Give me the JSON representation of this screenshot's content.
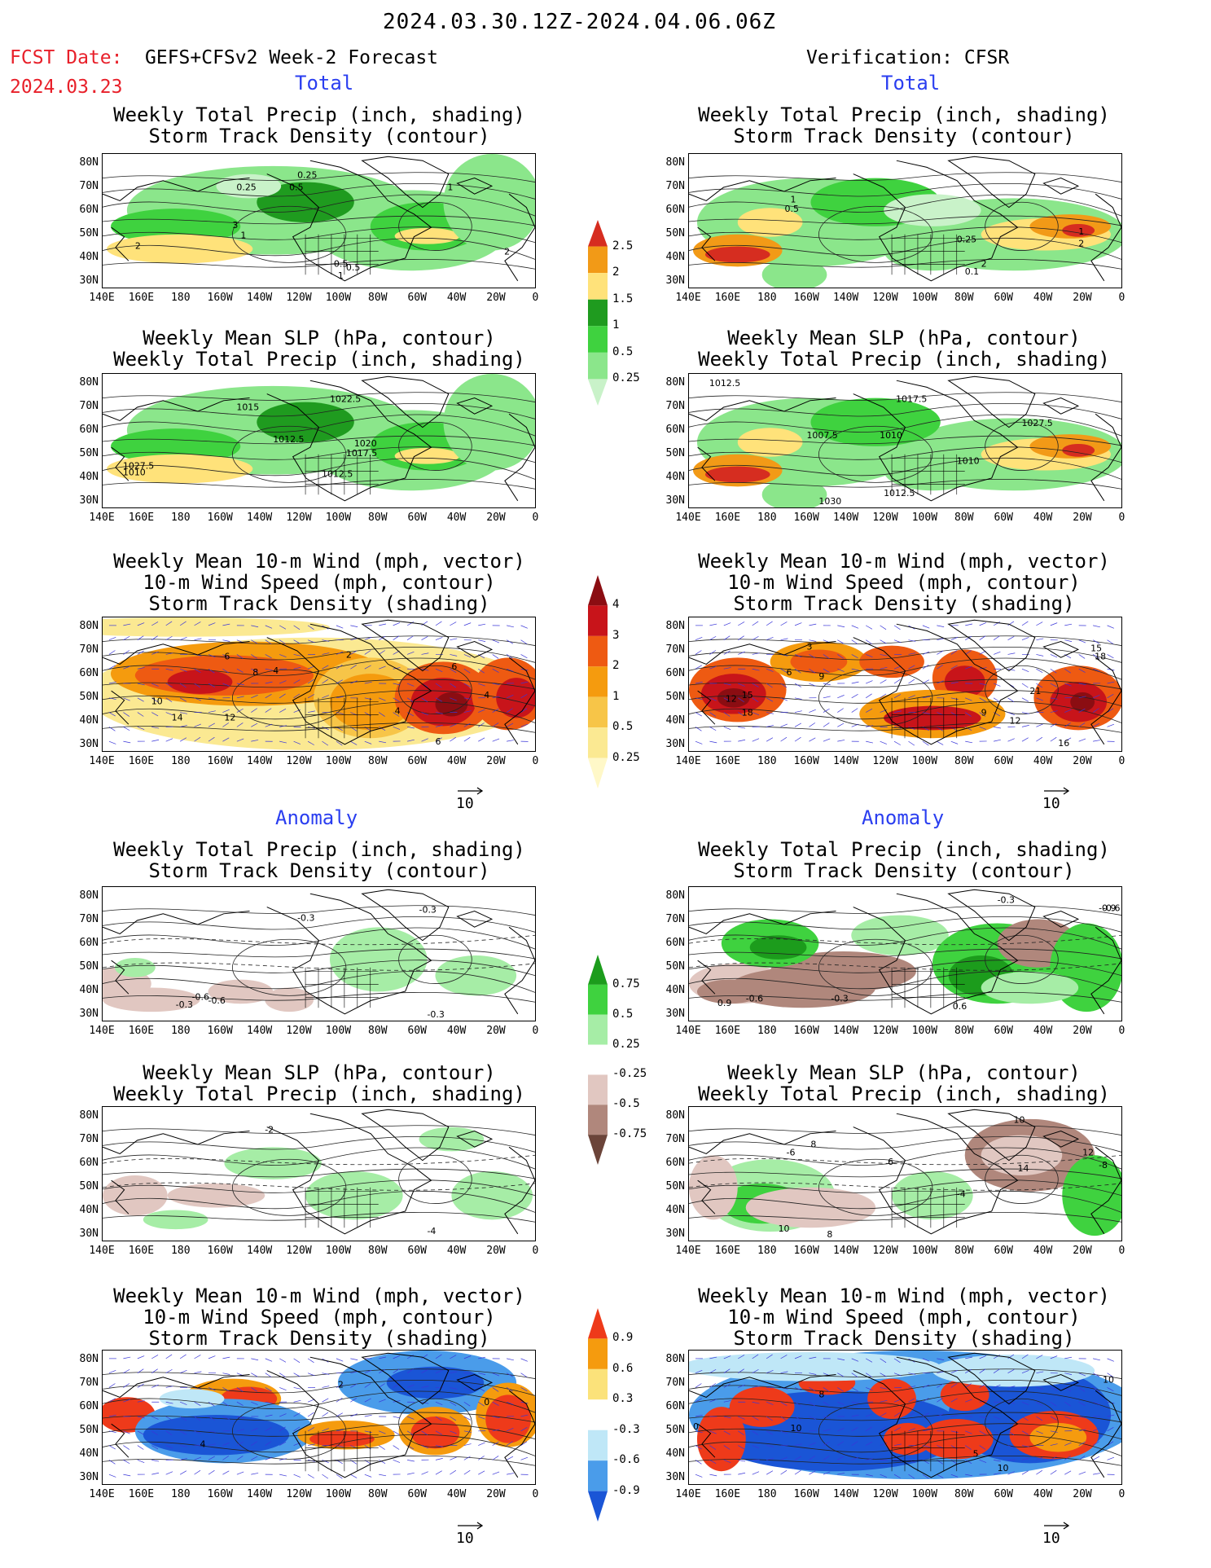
{
  "header": {
    "date_range": "2024.03.30.12Z-2024.04.06.06Z",
    "fcst_label": "FCST Date:",
    "fcst_model": "GEFS+CFSv2 Week-2 Forecast",
    "fcst_date": "2024.03.23",
    "verification": "Verification: CFSR"
  },
  "sections": {
    "total": "Total",
    "anomaly": "Anomaly"
  },
  "panel_titles": {
    "precip_storm": "Weekly Total Precip (inch, shading)\nStorm Track Density (contour)",
    "slp_precip": "Weekly Mean SLP (hPa, contour)\nWeekly Total Precip (inch, shading)",
    "wind": "Weekly Mean 10-m Wind (mph, vector)\n10-m Wind Speed (mph, contour)\nStorm Track Density (shading)"
  },
  "axes": {
    "lat_ticks": [
      "80N",
      "70N",
      "60N",
      "50N",
      "40N",
      "30N"
    ],
    "lon_ticks": [
      "140E",
      "160E",
      "180",
      "160W",
      "140W",
      "120W",
      "100W",
      "80W",
      "60W",
      "40W",
      "20W",
      "0"
    ]
  },
  "colorbars": {
    "total_precip": {
      "labels": [
        "2.5",
        "2",
        "1.5",
        "1",
        "0.5",
        "0.25"
      ],
      "colors": [
        "#d62d20",
        "#f29a17",
        "#ffe27a",
        "#1f9b1f",
        "#3fd23f",
        "#8be68b",
        "#c9f2c9"
      ]
    },
    "total_storm": {
      "labels": [
        "4",
        "3",
        "2",
        "1",
        "0.5",
        "0.25"
      ],
      "colors": [
        "#8b0d12",
        "#c8141a",
        "#ee5a12",
        "#f59b0e",
        "#f7c548",
        "#fbe992",
        "#fff8c8"
      ]
    },
    "anom_precip": {
      "labels": [
        "0.75",
        "0.5",
        "0.25",
        "-0.25",
        "-0.5",
        "-0.75"
      ],
      "colors": [
        "#1c9c1c",
        "#3fd23f",
        "#a6eda6",
        "#ffffff",
        "#e1c7c1",
        "#b0877c",
        "#6b4439"
      ]
    },
    "anom_storm": {
      "labels": [
        "0.9",
        "0.6",
        "0.3",
        "-0.3",
        "-0.6",
        "-0.9"
      ],
      "colors": [
        "#ee3a1a",
        "#f59b0e",
        "#fbe27a",
        "#ffffff",
        "#bfe7f7",
        "#4a9cea",
        "#1a55d6"
      ]
    }
  },
  "vector_ref": "10",
  "maps": {
    "l1": {
      "labels": [
        "0.25",
        "0.25",
        "0.5",
        "1",
        "3",
        "1",
        "2",
        "2",
        "1",
        "0.5",
        "0.5"
      ]
    },
    "r1": {
      "labels": [
        "1",
        "0.5",
        "0.25",
        "0.1",
        "2",
        "1",
        "2"
      ]
    },
    "l2": {
      "labels": [
        "1015",
        "1022.5",
        "1012.5",
        "1020",
        "1017.5",
        "1012.5",
        "1027.5",
        "1010"
      ]
    },
    "r2": {
      "labels": [
        "1012.5",
        "1017.5",
        "1007.5",
        "1010",
        "1027.5",
        "1010",
        "1012.5",
        "1030"
      ]
    },
    "l3": {
      "labels": [
        "6",
        "8",
        "4",
        "2",
        "4",
        "6",
        "10",
        "14",
        "12",
        "6",
        "4"
      ]
    },
    "r3": {
      "labels": [
        "3",
        "6",
        "9",
        "12",
        "15",
        "18",
        "9",
        "12",
        "16",
        "21",
        "15",
        "18"
      ]
    },
    "l4": {
      "labels": [
        "-0.3",
        "-0.6",
        "-0.3",
        "-0.6",
        "-0.3",
        "-0.3"
      ]
    },
    "r4": {
      "labels": [
        "-0.3",
        "-0.6",
        "-0.9",
        "0.9",
        "-0.6",
        "-0.3",
        "0.6"
      ]
    },
    "l5": {
      "labels": [
        "-2",
        "-4"
      ]
    },
    "r5": {
      "labels": [
        "10",
        "8",
        "6",
        "-6",
        "-4",
        "14",
        "12",
        "-8",
        "10",
        "8"
      ]
    },
    "l6": {
      "labels": [
        "4",
        "2",
        "0"
      ]
    },
    "r6": {
      "labels": [
        "8",
        "10",
        "0",
        "5",
        "10",
        "10"
      ]
    }
  }
}
